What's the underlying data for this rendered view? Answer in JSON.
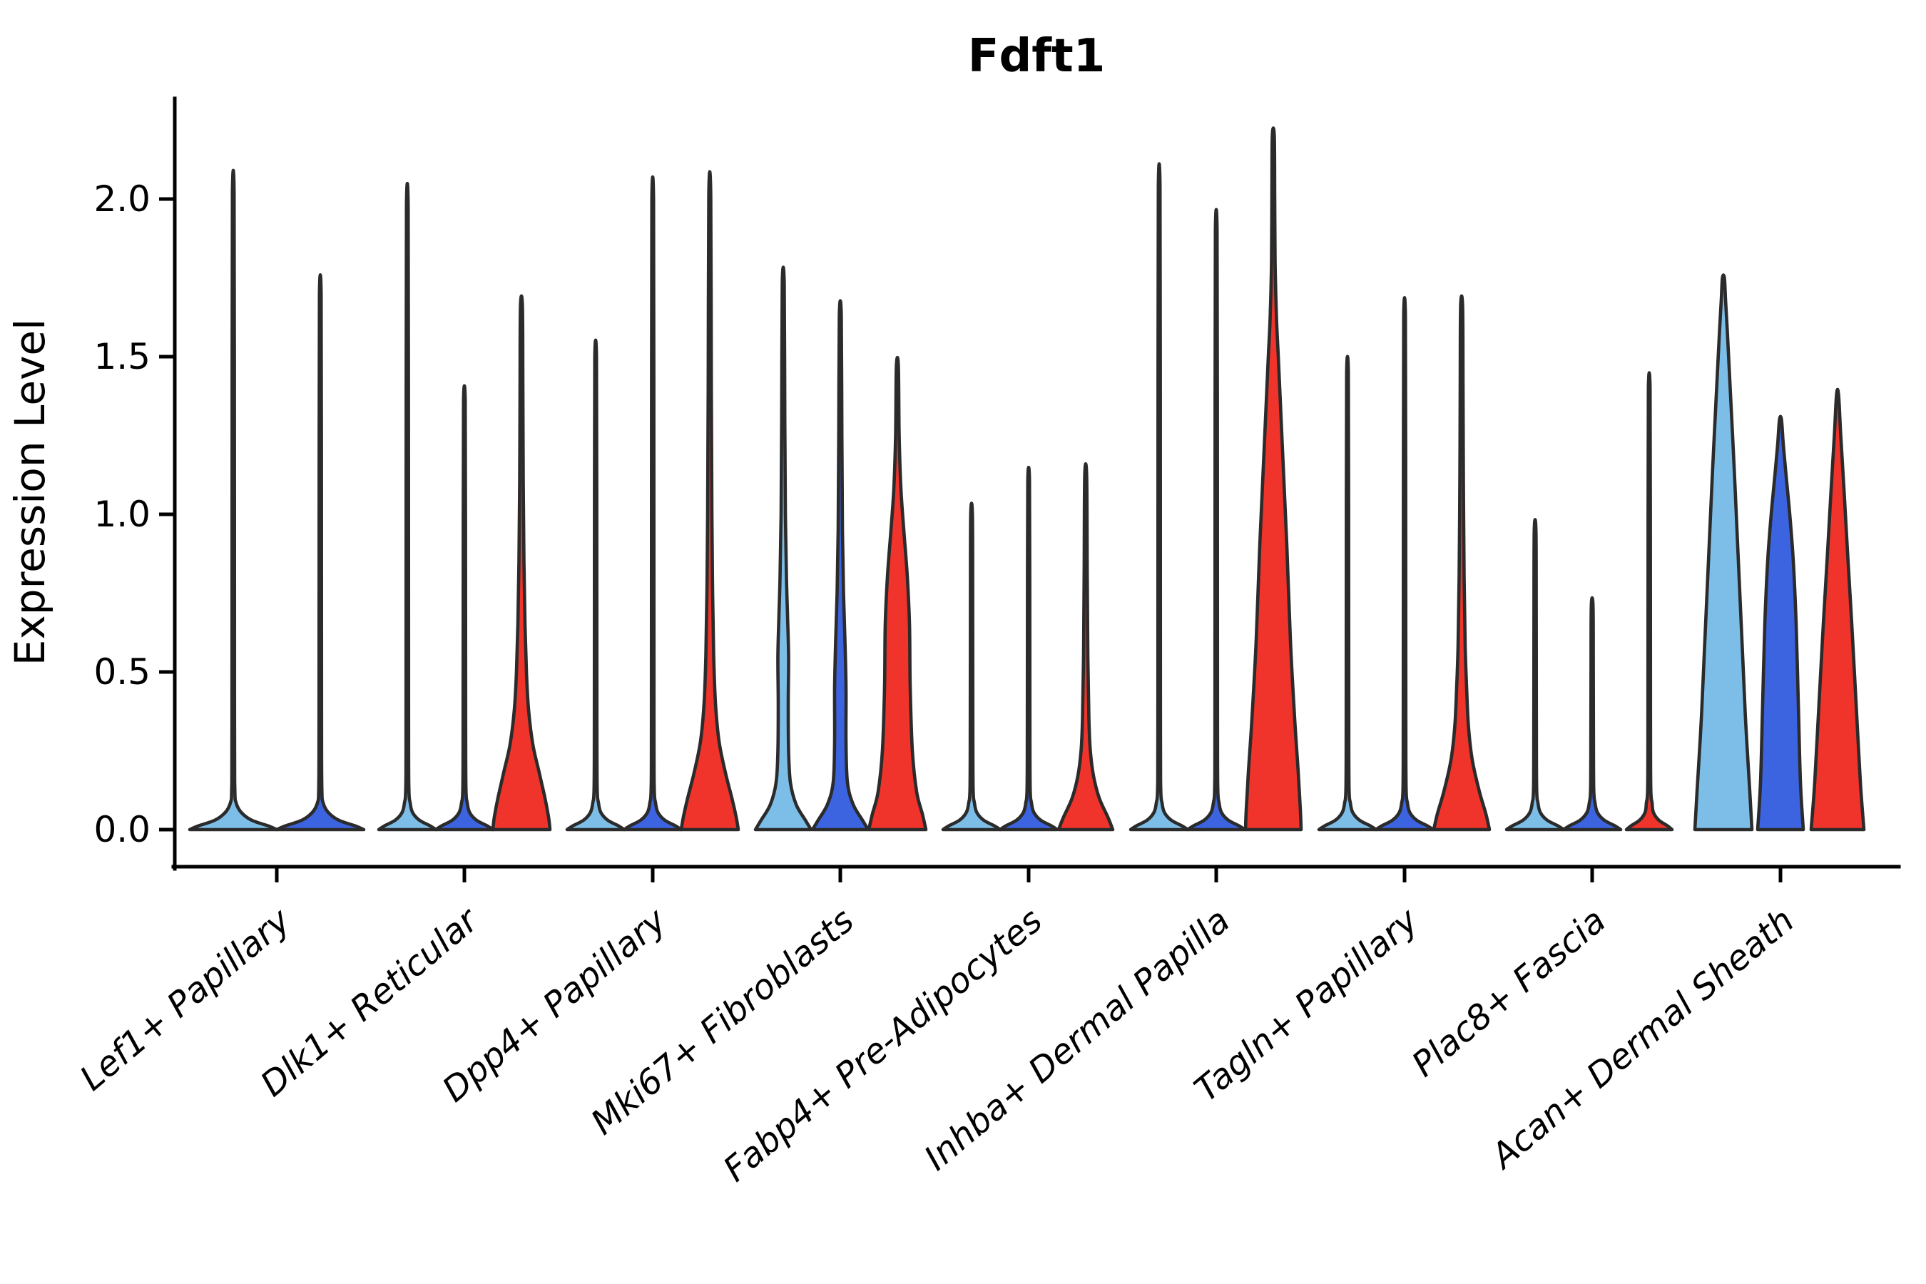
{
  "chart_data": {
    "type": "violin",
    "title": "Fdft1",
    "ylabel": "Expression Level",
    "xlabel": "",
    "ylim": [
      0,
      2.2
    ],
    "grid": false,
    "legend_position": "none",
    "yticks": [
      {
        "label": "0.0",
        "value": 0.0
      },
      {
        "label": "0.5",
        "value": 0.5
      },
      {
        "label": "1.0",
        "value": 1.0
      },
      {
        "label": "1.5",
        "value": 1.5
      },
      {
        "label": "2.0",
        "value": 2.0
      }
    ],
    "colors": {
      "background": "#ffffff",
      "outline": "#2b2b2b",
      "axis": "#000000",
      "splits": [
        "#7DBEE8",
        "#3C64E0",
        "#F0342B"
      ]
    },
    "categories": [
      {
        "label": "Lef1+ Papillary",
        "violins": [
          {
            "split": 0,
            "max": 2.02,
            "kind": "needle",
            "base": 61
          },
          {
            "split": 1,
            "max": 1.7,
            "kind": "needle",
            "base": 61
          }
        ]
      },
      {
        "label": "Dlk1+ Reticular",
        "violins": [
          {
            "split": 0,
            "max": 1.98,
            "kind": "needle",
            "base": 40
          },
          {
            "split": 1,
            "max": 1.36,
            "kind": "needle",
            "base": 40
          },
          {
            "split": 2,
            "max": 1.66,
            "kind": "shaped",
            "profile": [
              [
                0,
                40
              ],
              [
                0.04,
                38
              ],
              [
                0.1,
                33
              ],
              [
                0.18,
                25
              ],
              [
                0.27,
                16
              ],
              [
                0.38,
                10
              ],
              [
                0.5,
                7
              ],
              [
                0.65,
                5
              ],
              [
                0.85,
                3.5
              ],
              [
                1.1,
                2.5
              ],
              [
                1.4,
                2
              ],
              [
                1.66,
                1.4
              ]
            ]
          }
        ]
      },
      {
        "label": "Dpp4+ Papillary",
        "violins": [
          {
            "split": 0,
            "max": 1.5,
            "kind": "needle",
            "base": 40
          },
          {
            "split": 1,
            "max": 2.0,
            "kind": "needle",
            "base": 40
          },
          {
            "split": 2,
            "max": 2.01,
            "kind": "shaped",
            "profile": [
              [
                0,
                40
              ],
              [
                0.04,
                37
              ],
              [
                0.1,
                31
              ],
              [
                0.18,
                22
              ],
              [
                0.28,
                13
              ],
              [
                0.4,
                8
              ],
              [
                0.55,
                5.5
              ],
              [
                0.75,
                4
              ],
              [
                1.0,
                3
              ],
              [
                1.4,
                2.2
              ],
              [
                2.01,
                1.4
              ]
            ]
          }
        ]
      },
      {
        "label": "Mki67+ Fibroblasts",
        "violins": [
          {
            "split": 0,
            "max": 1.73,
            "kind": "shaped",
            "profile": [
              [
                0,
                39
              ],
              [
                0.03,
                31
              ],
              [
                0.08,
                18
              ],
              [
                0.15,
                10
              ],
              [
                0.25,
                7.5
              ],
              [
                0.4,
                7
              ],
              [
                0.55,
                7.5
              ],
              [
                0.68,
                6
              ],
              [
                0.8,
                4.5
              ],
              [
                1.0,
                3
              ],
              [
                1.3,
                2.2
              ],
              [
                1.73,
                1.4
              ]
            ]
          },
          {
            "split": 1,
            "max": 1.63,
            "kind": "shaped",
            "profile": [
              [
                0,
                39
              ],
              [
                0.03,
                31
              ],
              [
                0.08,
                18
              ],
              [
                0.15,
                10
              ],
              [
                0.28,
                8
              ],
              [
                0.45,
                8
              ],
              [
                0.6,
                6.5
              ],
              [
                0.75,
                4.5
              ],
              [
                0.95,
                3
              ],
              [
                1.25,
                2.2
              ],
              [
                1.63,
                1.4
              ]
            ]
          },
          {
            "split": 2,
            "max": 1.47,
            "kind": "shaped",
            "profile": [
              [
                0,
                40
              ],
              [
                0.05,
                35
              ],
              [
                0.12,
                27
              ],
              [
                0.25,
                21
              ],
              [
                0.45,
                18
              ],
              [
                0.65,
                17
              ],
              [
                0.8,
                14
              ],
              [
                0.95,
                9
              ],
              [
                1.08,
                5
              ],
              [
                1.25,
                2.5
              ],
              [
                1.47,
                1.4
              ]
            ]
          }
        ]
      },
      {
        "label": "Fabp4+ Pre-Adipocytes",
        "violins": [
          {
            "split": 0,
            "max": 1.0,
            "kind": "needle",
            "base": 40
          },
          {
            "split": 1,
            "max": 1.11,
            "kind": "needle",
            "base": 40
          },
          {
            "split": 2,
            "max": 1.12,
            "kind": "shaped",
            "profile": [
              [
                0,
                38
              ],
              [
                0.04,
                31
              ],
              [
                0.1,
                19
              ],
              [
                0.17,
                11
              ],
              [
                0.25,
                6.5
              ],
              [
                0.35,
                4.5
              ],
              [
                0.55,
                3
              ],
              [
                0.8,
                2.2
              ],
              [
                1.12,
                1.4
              ]
            ]
          }
        ]
      },
      {
        "label": "Inhba+ Dermal Papilla",
        "violins": [
          {
            "split": 0,
            "max": 2.04,
            "kind": "needle",
            "base": 40
          },
          {
            "split": 1,
            "max": 1.9,
            "kind": "needle",
            "base": 40
          },
          {
            "split": 2,
            "max": 2.2,
            "kind": "shaped",
            "profile": [
              [
                0,
                39
              ],
              [
                0.06,
                38
              ],
              [
                0.18,
                35
              ],
              [
                0.35,
                30
              ],
              [
                0.6,
                24
              ],
              [
                0.9,
                19
              ],
              [
                1.15,
                14
              ],
              [
                1.35,
                10
              ],
              [
                1.5,
                7
              ],
              [
                1.62,
                4.5
              ],
              [
                1.8,
                2.5
              ],
              [
                2.0,
                2
              ],
              [
                2.2,
                1.4
              ]
            ]
          }
        ]
      },
      {
        "label": "Tagln+ Papillary",
        "violins": [
          {
            "split": 0,
            "max": 1.45,
            "kind": "needle",
            "base": 40
          },
          {
            "split": 1,
            "max": 1.63,
            "kind": "needle",
            "base": 40
          },
          {
            "split": 2,
            "max": 1.66,
            "kind": "shaped",
            "profile": [
              [
                0,
                39
              ],
              [
                0.05,
                34
              ],
              [
                0.12,
                25
              ],
              [
                0.22,
                15
              ],
              [
                0.33,
                9.5
              ],
              [
                0.45,
                7
              ],
              [
                0.58,
                5
              ],
              [
                0.8,
                3.5
              ],
              [
                1.1,
                2.5
              ],
              [
                1.4,
                2
              ],
              [
                1.66,
                1.4
              ]
            ]
          }
        ]
      },
      {
        "label": "Plac8+ Fascia",
        "violins": [
          {
            "split": 0,
            "max": 0.95,
            "kind": "needle",
            "base": 40
          },
          {
            "split": 1,
            "max": 0.71,
            "kind": "needle",
            "base": 40
          },
          {
            "split": 2,
            "max": 1.4,
            "kind": "needle",
            "base": 32
          }
        ]
      },
      {
        "label": "Acan+ Dermal Sheath",
        "violins": [
          {
            "split": 0,
            "max": 1.75,
            "kind": "shaped",
            "profile": [
              [
                0,
                40
              ],
              [
                0.12,
                37
              ],
              [
                0.35,
                31
              ],
              [
                0.6,
                26
              ],
              [
                0.9,
                20
              ],
              [
                1.15,
                15
              ],
              [
                1.4,
                9.5
              ],
              [
                1.58,
                5.5
              ],
              [
                1.68,
                3
              ],
              [
                1.75,
                1.4
              ]
            ]
          },
          {
            "split": 1,
            "max": 1.3,
            "kind": "shaped",
            "profile": [
              [
                0,
                32
              ],
              [
                0.15,
                28
              ],
              [
                0.4,
                25
              ],
              [
                0.65,
                22
              ],
              [
                0.85,
                18
              ],
              [
                1.0,
                13
              ],
              [
                1.12,
                8
              ],
              [
                1.22,
                4
              ],
              [
                1.3,
                1.4
              ]
            ]
          },
          {
            "split": 2,
            "max": 1.38,
            "kind": "shaped",
            "profile": [
              [
                0,
                37
              ],
              [
                0.15,
                32
              ],
              [
                0.4,
                26
              ],
              [
                0.65,
                20
              ],
              [
                0.88,
                14
              ],
              [
                1.08,
                9
              ],
              [
                1.25,
                4.5
              ],
              [
                1.38,
                1.4
              ]
            ]
          }
        ]
      }
    ]
  }
}
